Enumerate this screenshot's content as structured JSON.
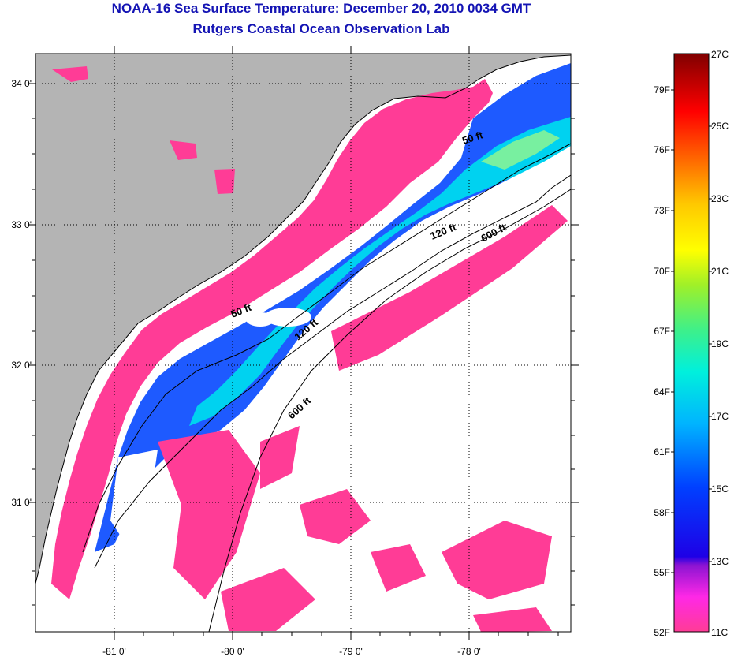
{
  "header": {
    "title": "NOAA-16 Sea Surface Temperature:  December 20, 2010 0034 GMT",
    "subtitle": "Rutgers Coastal Ocean Observation Lab"
  },
  "map": {
    "lat_ticks": [
      "34 0'",
      "33 0'",
      "32 0'",
      "31 0'"
    ],
    "lon_ticks": [
      "-81 0'",
      "-80 0'",
      "-79 0'",
      "-78 0'"
    ],
    "contour_labels": [
      "50 ft",
      "120 ft",
      "600 ft",
      "50 ft",
      "120 ft",
      "600 ft"
    ],
    "colors": {
      "land": "#b4b4b4",
      "cloud_mask": "#ffffff",
      "coldest": "#ff3c96"
    }
  },
  "colorbar": {
    "fahrenheit": [
      "79F",
      "76F",
      "73F",
      "70F",
      "67F",
      "64F",
      "61F",
      "58F",
      "55F",
      "52F"
    ],
    "celsius": [
      "27C",
      "25C",
      "23C",
      "21C",
      "19C",
      "17C",
      "15C",
      "13C",
      "11C"
    ],
    "range_c": [
      11,
      27
    ]
  }
}
